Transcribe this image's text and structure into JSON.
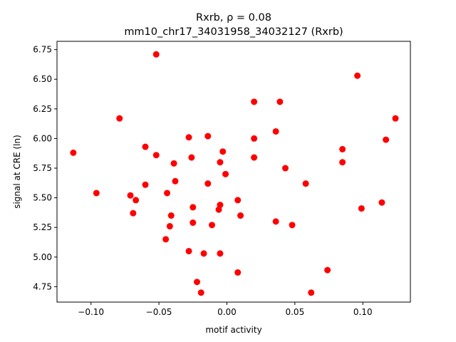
{
  "chart_data": {
    "type": "scatter",
    "title_line1": "Rxrb, ρ = 0.08",
    "title_line2": "mm10_chr17_34031958_34032127 (Rxrb)",
    "xlabel": "motif activity",
    "ylabel": "signal at CRE (ln)",
    "xlim": [
      -0.125,
      0.135
    ],
    "ylim": [
      4.62,
      6.82
    ],
    "xticks": [
      -0.1,
      -0.05,
      0.0,
      0.05,
      0.1
    ],
    "xtick_labels": [
      "−0.10",
      "−0.05",
      "0.00",
      "0.05",
      "0.10"
    ],
    "yticks": [
      4.75,
      5.0,
      5.25,
      5.5,
      5.75,
      6.0,
      6.25,
      6.5,
      6.75
    ],
    "ytick_labels": [
      "4.75",
      "5.00",
      "5.25",
      "5.50",
      "5.75",
      "6.00",
      "6.25",
      "6.50",
      "6.75"
    ],
    "marker_color": "#ff0000",
    "grid": false,
    "points": [
      {
        "x": -0.113,
        "y": 5.88
      },
      {
        "x": -0.096,
        "y": 5.54
      },
      {
        "x": -0.079,
        "y": 6.17
      },
      {
        "x": -0.071,
        "y": 5.52
      },
      {
        "x": -0.069,
        "y": 5.37
      },
      {
        "x": -0.067,
        "y": 5.48
      },
      {
        "x": -0.06,
        "y": 5.93
      },
      {
        "x": -0.06,
        "y": 5.61
      },
      {
        "x": -0.052,
        "y": 6.71
      },
      {
        "x": -0.052,
        "y": 5.86
      },
      {
        "x": -0.044,
        "y": 5.54
      },
      {
        "x": -0.045,
        "y": 5.15
      },
      {
        "x": -0.042,
        "y": 5.26
      },
      {
        "x": -0.041,
        "y": 5.35
      },
      {
        "x": -0.039,
        "y": 5.79
      },
      {
        "x": -0.038,
        "y": 5.64
      },
      {
        "x": -0.028,
        "y": 6.01
      },
      {
        "x": -0.028,
        "y": 5.05
      },
      {
        "x": -0.026,
        "y": 5.84
      },
      {
        "x": -0.025,
        "y": 5.42
      },
      {
        "x": -0.025,
        "y": 5.29
      },
      {
        "x": -0.022,
        "y": 4.79
      },
      {
        "x": -0.019,
        "y": 4.7
      },
      {
        "x": -0.017,
        "y": 5.03
      },
      {
        "x": -0.014,
        "y": 6.02
      },
      {
        "x": -0.014,
        "y": 5.62
      },
      {
        "x": -0.011,
        "y": 5.27
      },
      {
        "x": -0.006,
        "y": 5.4
      },
      {
        "x": -0.005,
        "y": 5.44
      },
      {
        "x": -0.005,
        "y": 5.8
      },
      {
        "x": -0.005,
        "y": 5.03
      },
      {
        "x": -0.003,
        "y": 5.89
      },
      {
        "x": -0.001,
        "y": 5.7
      },
      {
        "x": 0.008,
        "y": 5.48
      },
      {
        "x": 0.008,
        "y": 4.87
      },
      {
        "x": 0.01,
        "y": 5.35
      },
      {
        "x": 0.02,
        "y": 6.31
      },
      {
        "x": 0.02,
        "y": 6.0
      },
      {
        "x": 0.02,
        "y": 5.84
      },
      {
        "x": 0.036,
        "y": 6.06
      },
      {
        "x": 0.036,
        "y": 5.3
      },
      {
        "x": 0.039,
        "y": 6.31
      },
      {
        "x": 0.043,
        "y": 5.75
      },
      {
        "x": 0.048,
        "y": 5.27
      },
      {
        "x": 0.058,
        "y": 5.62
      },
      {
        "x": 0.062,
        "y": 4.7
      },
      {
        "x": 0.074,
        "y": 4.89
      },
      {
        "x": 0.085,
        "y": 5.91
      },
      {
        "x": 0.085,
        "y": 5.8
      },
      {
        "x": 0.096,
        "y": 6.53
      },
      {
        "x": 0.099,
        "y": 5.41
      },
      {
        "x": 0.114,
        "y": 5.46
      },
      {
        "x": 0.117,
        "y": 5.99
      },
      {
        "x": 0.124,
        "y": 6.17
      }
    ]
  }
}
